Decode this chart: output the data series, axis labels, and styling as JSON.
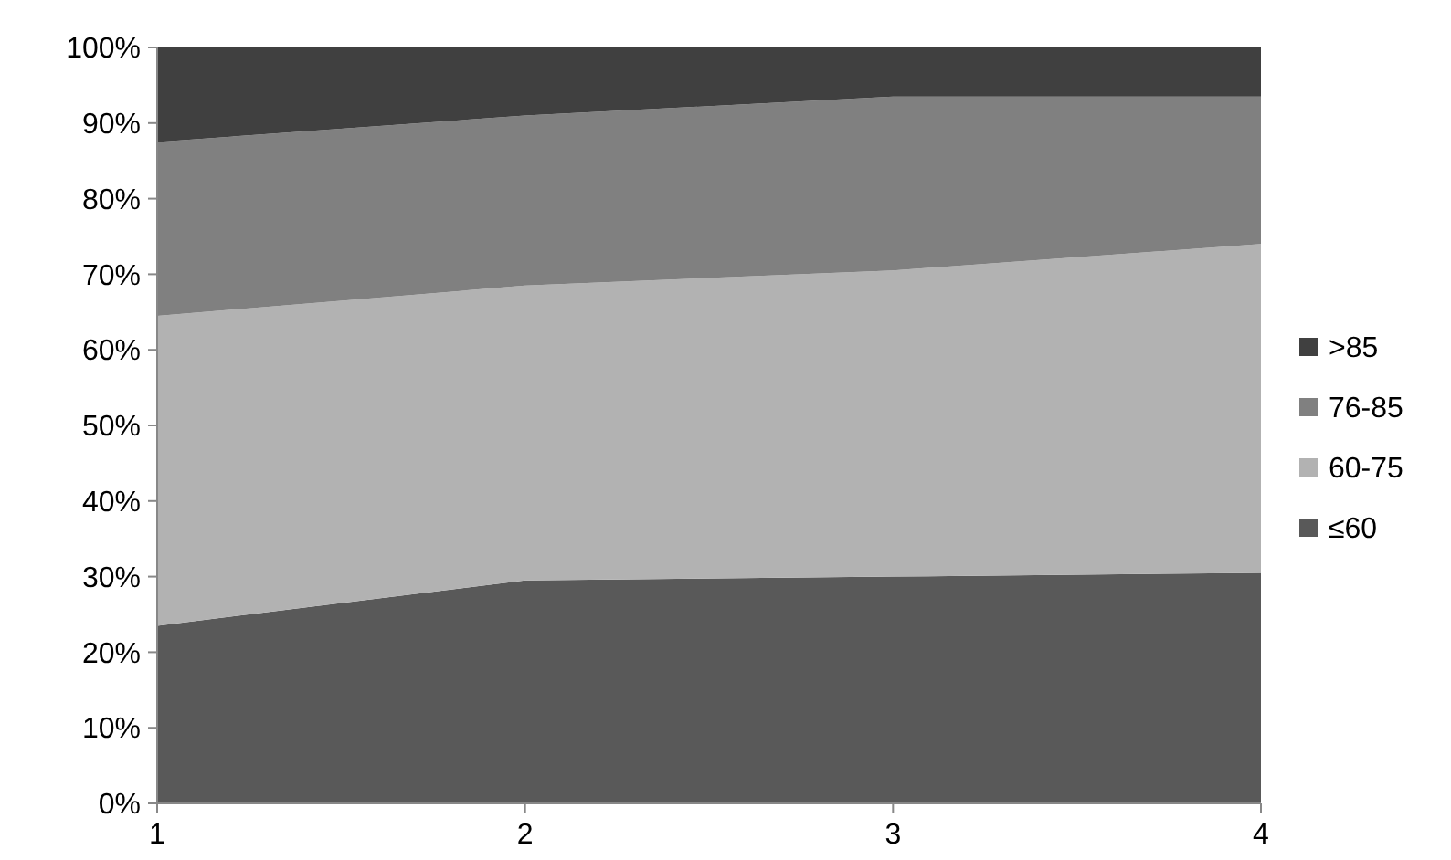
{
  "chart_data": {
    "type": "area",
    "stacked": true,
    "x": [
      1,
      2,
      3,
      4
    ],
    "xlim": [
      1,
      4
    ],
    "xticks": [
      1,
      2,
      3,
      4
    ],
    "ylim": [
      0,
      100
    ],
    "yticks": [
      {
        "value": 0,
        "label": "0%"
      },
      {
        "value": 10,
        "label": "10%"
      },
      {
        "value": 20,
        "label": "20%"
      },
      {
        "value": 30,
        "label": "30%"
      },
      {
        "value": 40,
        "label": "40%"
      },
      {
        "value": 50,
        "label": "50%"
      },
      {
        "value": 60,
        "label": "60%"
      },
      {
        "value": 70,
        "label": "70%"
      },
      {
        "value": 80,
        "label": "80%"
      },
      {
        "value": 90,
        "label": "90%"
      },
      {
        "value": 100,
        "label": "100%"
      }
    ],
    "legend": "right",
    "grid": false,
    "series": [
      {
        "name": "≤60",
        "color": "#595959",
        "values": [
          23.5,
          29.5,
          30,
          30.5
        ]
      },
      {
        "name": "60-75",
        "color": "#b2b2b2",
        "values": [
          41,
          39,
          40.5,
          43.5
        ]
      },
      {
        "name": "76-85",
        "color": "#808080",
        "values": [
          23,
          22.5,
          23,
          19.5
        ]
      },
      {
        "name": ">85",
        "color": "#404040",
        "values": [
          12.5,
          9,
          6.5,
          6.5
        ]
      }
    ]
  }
}
